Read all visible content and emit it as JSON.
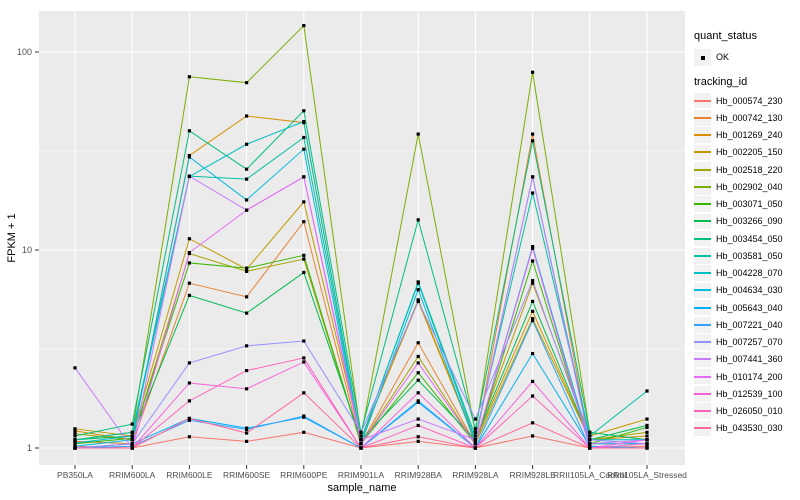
{
  "figure": {
    "background": "#FFFFFF",
    "panel_background": "#EBEBEB",
    "grid_color": "#FFFFFF",
    "axis_text_color": "#4D4D4D",
    "axis_title_color": "#000000",
    "point_color": "#000000",
    "legend_key_background": "#F2F2F2"
  },
  "legend": {
    "quant_status_title": "quant_status",
    "quant_status_items": [
      {
        "label": "OK",
        "marker": "black-square-point"
      }
    ],
    "tracking_id_title": "tracking_id"
  },
  "chart_data": {
    "type": "line",
    "title": "",
    "xlabel": "sample_name",
    "ylabel": "FPKM + 1",
    "y_scale": "log10",
    "y_ticks": [
      1,
      10,
      100
    ],
    "y_tick_labels": [
      "1",
      "10",
      "100"
    ],
    "y_minor_ticks": [
      3.162,
      31.62
    ],
    "ylim": [
      0.88,
      161
    ],
    "grid": true,
    "legend_position": "right",
    "marker": "small-black-square",
    "categories": [
      "PB350LA",
      "RRIM600LA",
      "RRIM600LE",
      "RRIM600SE",
      "RRIM600PE",
      "RRIM901LA",
      "RRIM928BA",
      "RRIM928LA",
      "RRIM928LE",
      "RRII105LA_Control",
      "RRII105LA_Stressed"
    ],
    "series": [
      {
        "name": "Hb_000574_230",
        "color": "#F8766D",
        "values": [
          1.02,
          1.0,
          1.14,
          1.08,
          1.2,
          1.0,
          1.08,
          1.0,
          1.15,
          1.0,
          1.02
        ]
      },
      {
        "name": "Hb_000742_130",
        "color": "#EA8331",
        "values": [
          1.08,
          1.05,
          6.8,
          5.8,
          13.9,
          1.05,
          3.4,
          1.05,
          38.5,
          1.05,
          1.05
        ]
      },
      {
        "name": "Hb_001269_240",
        "color": "#D89000",
        "values": [
          1.22,
          1.1,
          30.0,
          47.5,
          44.0,
          1.1,
          5.5,
          1.08,
          4.9,
          1.1,
          1.15
        ]
      },
      {
        "name": "Hb_002205_150",
        "color": "#C09B00",
        "values": [
          1.25,
          1.15,
          11.4,
          8.0,
          17.5,
          1.1,
          5.6,
          1.1,
          6.8,
          1.15,
          1.4
        ]
      },
      {
        "name": "Hb_002518_220",
        "color": "#A3A500",
        "values": [
          1.18,
          1.1,
          9.6,
          7.8,
          9.0,
          1.05,
          2.9,
          1.05,
          4.5,
          1.1,
          1.2
        ]
      },
      {
        "name": "Hb_002902_040",
        "color": "#7CAE00",
        "values": [
          1.1,
          1.2,
          75.0,
          70.0,
          136.0,
          1.15,
          38.5,
          1.2,
          79.0,
          1.2,
          1.1
        ]
      },
      {
        "name": "Hb_003071_050",
        "color": "#39B600",
        "values": [
          1.05,
          1.12,
          8.6,
          8.1,
          9.4,
          1.05,
          2.4,
          1.05,
          8.8,
          1.05,
          1.27
        ]
      },
      {
        "name": "Hb_003266_090",
        "color": "#00BB4E",
        "values": [
          1.1,
          1.15,
          5.9,
          4.8,
          7.7,
          1.1,
          2.2,
          1.1,
          5.5,
          1.1,
          1.3
        ]
      },
      {
        "name": "Hb_003454_050",
        "color": "#00BF7D",
        "values": [
          1.15,
          1.32,
          40.0,
          25.6,
          50.5,
          1.2,
          14.2,
          1.25,
          35.6,
          1.2,
          1.1
        ]
      },
      {
        "name": "Hb_003581_050",
        "color": "#00C1A3",
        "values": [
          1.1,
          1.2,
          23.6,
          22.8,
          37.0,
          1.1,
          6.9,
          1.15,
          19.4,
          1.15,
          1.94
        ]
      },
      {
        "name": "Hb_004228_070",
        "color": "#00BFC4",
        "values": [
          1.06,
          1.15,
          23.5,
          34.2,
          44.5,
          1.1,
          6.8,
          1.1,
          23.4,
          1.1,
          1.1
        ]
      },
      {
        "name": "Hb_004634_030",
        "color": "#00BAE0",
        "values": [
          1.02,
          1.1,
          29.5,
          17.9,
          32.3,
          1.05,
          6.3,
          1.05,
          10.4,
          1.05,
          1.05
        ]
      },
      {
        "name": "Hb_005643_040",
        "color": "#00B0F6",
        "values": [
          1.0,
          1.05,
          1.41,
          1.26,
          1.43,
          1.0,
          1.73,
          1.0,
          3.0,
          1.02,
          1.0
        ]
      },
      {
        "name": "Hb_007221_040",
        "color": "#35A2FF",
        "values": [
          1.0,
          1.02,
          1.38,
          1.24,
          1.45,
          1.0,
          1.7,
          1.0,
          4.4,
          1.0,
          1.0
        ]
      },
      {
        "name": "Hb_007257_070",
        "color": "#9590FF",
        "values": [
          1.0,
          1.05,
          2.69,
          3.28,
          3.47,
          1.2,
          5.5,
          1.4,
          7.0,
          1.1,
          1.05
        ]
      },
      {
        "name": "Hb_007441_360",
        "color": "#C77CFF",
        "values": [
          2.54,
          1.0,
          23.6,
          15.9,
          23.4,
          1.1,
          1.4,
          1.1,
          23.4,
          1.05,
          1.1
        ]
      },
      {
        "name": "Hb_010174_200",
        "color": "#E76BF3",
        "values": [
          1.0,
          1.0,
          9.7,
          15.9,
          23.4,
          1.05,
          2.69,
          1.05,
          10.2,
          1.0,
          1.1
        ]
      },
      {
        "name": "Hb_012539_100",
        "color": "#FA62DB",
        "values": [
          1.0,
          1.0,
          2.13,
          1.99,
          2.72,
          1.0,
          1.9,
          1.0,
          2.17,
          1.0,
          1.05
        ]
      },
      {
        "name": "Hb_026050_010",
        "color": "#FF62BC",
        "values": [
          1.0,
          1.0,
          1.73,
          2.46,
          2.85,
          1.0,
          1.3,
          1.0,
          1.83,
          1.0,
          1.0
        ]
      },
      {
        "name": "Hb_043530_030",
        "color": "#FF6A98",
        "values": [
          1.0,
          1.0,
          1.41,
          1.19,
          1.9,
          1.0,
          1.14,
          1.0,
          1.34,
          1.0,
          1.0
        ]
      }
    ]
  }
}
